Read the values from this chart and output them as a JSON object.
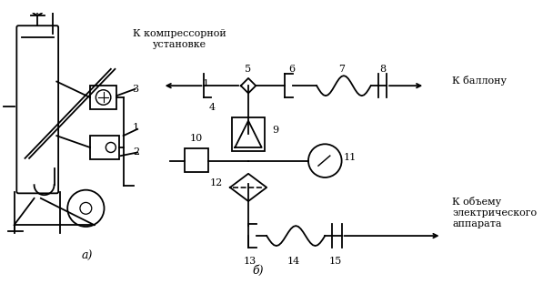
{
  "bg_color": "#ffffff",
  "line_color": "#000000",
  "figsize": [
    5.97,
    3.23
  ],
  "dpi": 100,
  "label_a": "а)",
  "label_b": "б)",
  "text_kompressor": "К компрессорной\nустановке",
  "text_balloon": "К баллону",
  "text_apparat": "К объему\nэлектрического\nаппарата"
}
